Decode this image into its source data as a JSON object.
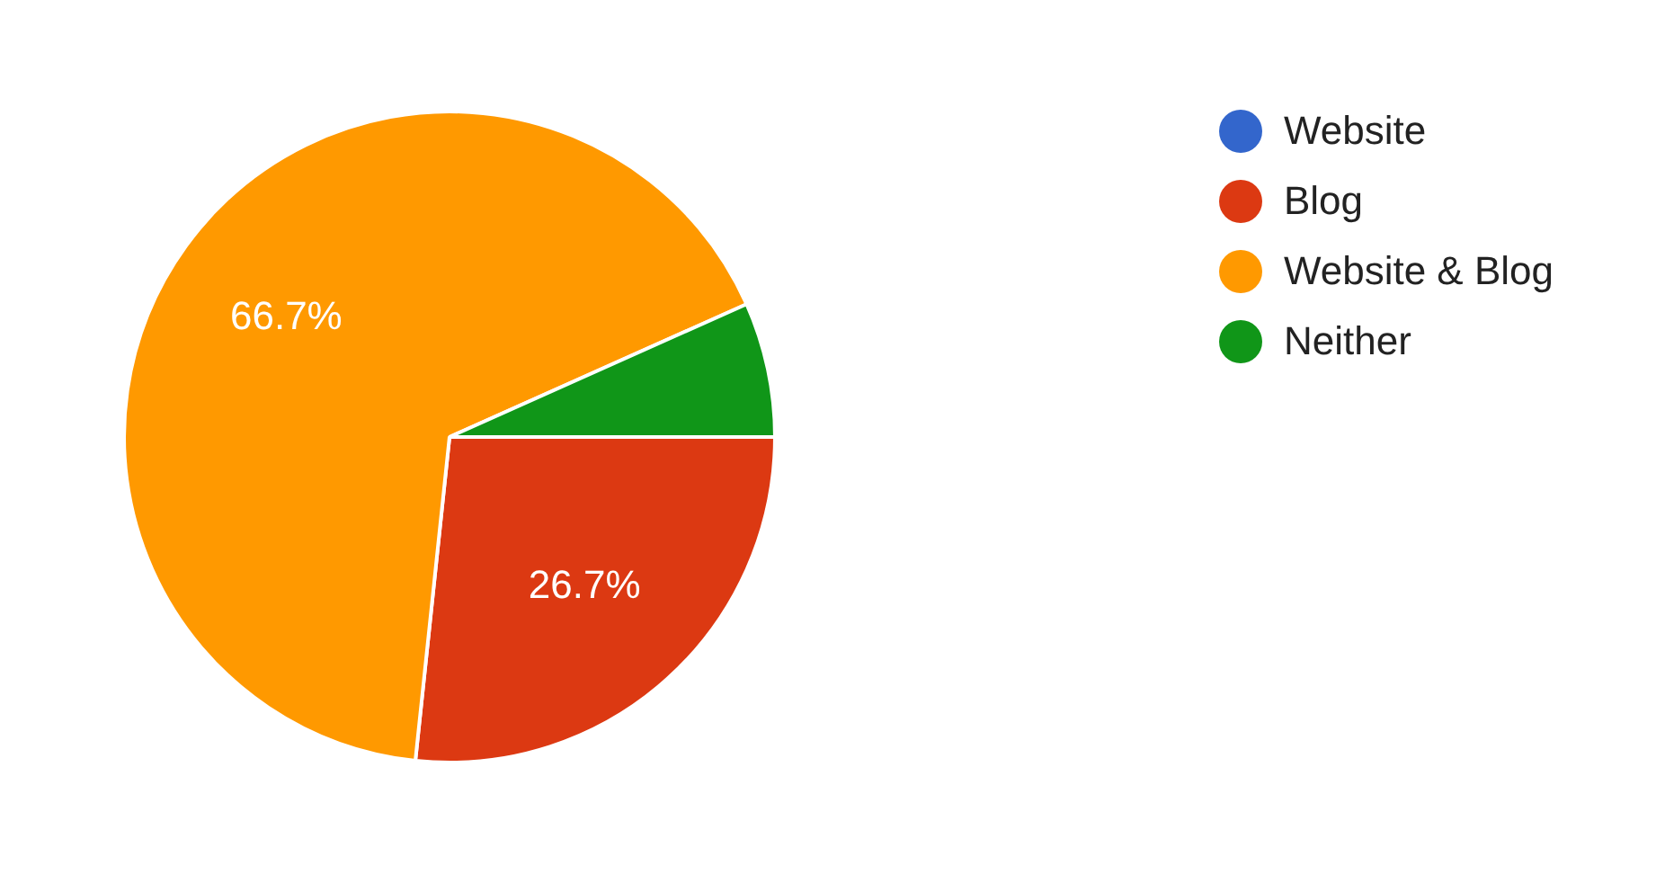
{
  "chart_data": {
    "type": "pie",
    "categories": [
      "Website",
      "Blog",
      "Website & Blog",
      "Neither"
    ],
    "values": [
      0,
      26.7,
      66.7,
      6.7
    ],
    "colors": [
      "#3366cc",
      "#dc3912",
      "#ff9900",
      "#109618"
    ],
    "value_labels": [
      null,
      "26.7%",
      "66.7%",
      null
    ],
    "legend": "right"
  }
}
